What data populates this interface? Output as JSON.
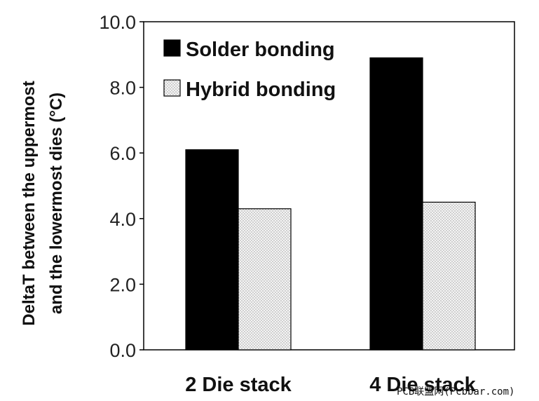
{
  "chart_data": {
    "type": "bar",
    "categories": [
      "2 Die stack",
      "4 Die stack"
    ],
    "series": [
      {
        "name": "Solder bonding",
        "values": [
          6.1,
          8.9
        ],
        "color": "#000000",
        "pattern": "solid"
      },
      {
        "name": "Hybrid bonding",
        "values": [
          4.3,
          4.5
        ],
        "color": "#f2f2f2",
        "pattern": "dotted"
      }
    ],
    "ylabel_lines": [
      "DeltaT between the uppermost",
      "and the lowermost dies (°C)"
    ],
    "ylim": [
      0,
      10
    ],
    "yticks": [
      "0.0",
      "2.0",
      "4.0",
      "6.0",
      "8.0",
      "10.0"
    ],
    "grid": false,
    "legend_position": "top-left"
  },
  "watermark": "PCB联盟网(Pcbbar.com)"
}
